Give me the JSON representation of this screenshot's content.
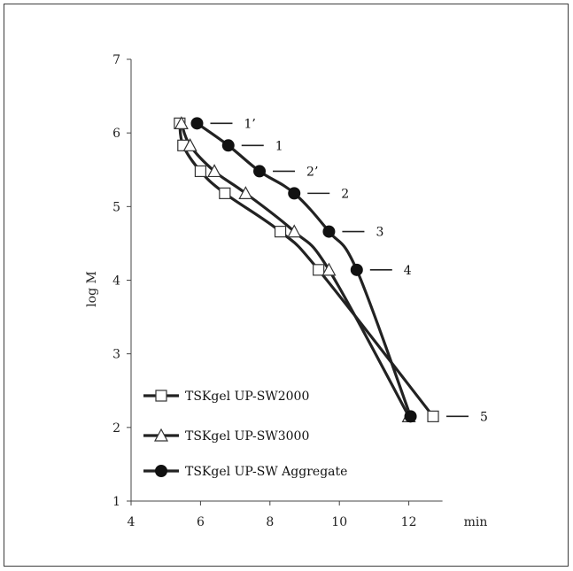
{
  "chart_data": {
    "type": "line",
    "xlabel": "min",
    "ylabel": "log M",
    "xlim": [
      4,
      13
    ],
    "ylim": [
      1,
      7
    ],
    "x_ticks": [
      4,
      6,
      8,
      10,
      12
    ],
    "y_ticks": [
      1,
      2,
      3,
      4,
      5,
      6,
      7
    ],
    "grid": false,
    "legend_position": "bottom-left",
    "series": [
      {
        "name": "TSKgel UP-SW2000",
        "marker": "square-open",
        "points": [
          [
            5.4,
            6.13
          ],
          [
            5.5,
            5.83
          ],
          [
            6.0,
            5.48
          ],
          [
            6.7,
            5.18
          ],
          [
            8.3,
            4.66
          ],
          [
            9.4,
            4.14
          ],
          [
            12.7,
            2.15
          ]
        ]
      },
      {
        "name": "TSKgel UP-SW3000",
        "marker": "triangle-open",
        "points": [
          [
            5.45,
            6.13
          ],
          [
            5.7,
            5.83
          ],
          [
            6.4,
            5.48
          ],
          [
            7.3,
            5.18
          ],
          [
            8.7,
            4.66
          ],
          [
            9.7,
            4.14
          ],
          [
            12.0,
            2.15
          ]
        ]
      },
      {
        "name": "TSKgel UP-SW Aggregate",
        "marker": "circle-filled",
        "points": [
          [
            5.9,
            6.13
          ],
          [
            6.8,
            5.83
          ],
          [
            7.7,
            5.48
          ],
          [
            8.7,
            5.18
          ],
          [
            9.7,
            4.66
          ],
          [
            10.5,
            4.14
          ],
          [
            12.05,
            2.15
          ]
        ]
      }
    ],
    "annotations": [
      {
        "text": "1’",
        "x": 5.9,
        "y": 6.13
      },
      {
        "text": "1",
        "x": 6.8,
        "y": 5.83
      },
      {
        "text": "2’",
        "x": 7.7,
        "y": 5.48
      },
      {
        "text": "2",
        "x": 8.7,
        "y": 5.18
      },
      {
        "text": "3",
        "x": 9.7,
        "y": 4.66
      },
      {
        "text": "4",
        "x": 10.5,
        "y": 4.14
      },
      {
        "text": "5",
        "x": 12.7,
        "y": 2.15
      }
    ]
  }
}
